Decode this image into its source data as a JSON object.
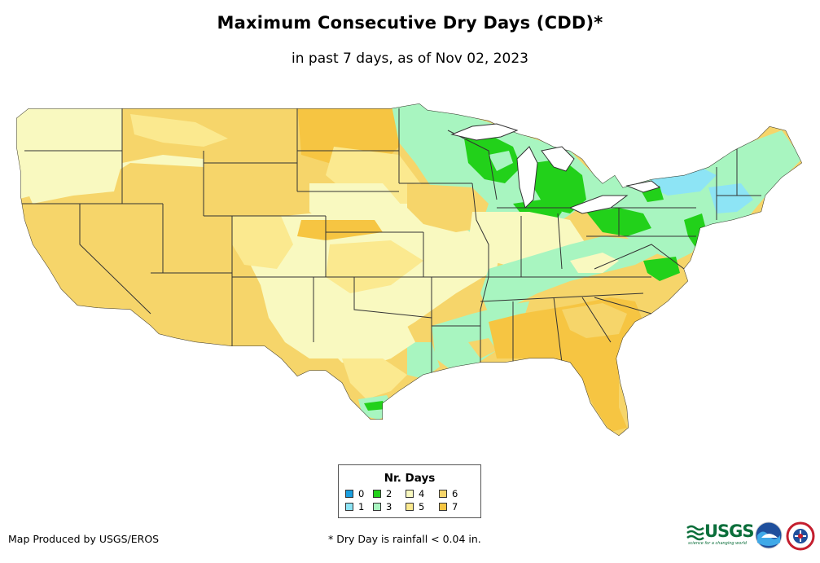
{
  "header": {
    "title": "Maximum Consecutive Dry Days (CDD)*",
    "subtitle": "in past 7 days, as of Nov 02, 2023"
  },
  "legend": {
    "title": "Nr. Days",
    "items": [
      {
        "label": "0",
        "color": "#1a9fe0"
      },
      {
        "label": "1",
        "color": "#8de4f5"
      },
      {
        "label": "2",
        "color": "#22d11a"
      },
      {
        "label": "3",
        "color": "#a8f5c0"
      },
      {
        "label": "4",
        "color": "#f9f9c0"
      },
      {
        "label": "5",
        "color": "#fbe98f"
      },
      {
        "label": "6",
        "color": "#f6d56a"
      },
      {
        "label": "7",
        "color": "#f6c542"
      }
    ]
  },
  "footer": {
    "credit": "Map Produced by USGS/EROS",
    "note": "* Dry Day is rainfall < 0.04 in."
  },
  "logos": {
    "usgs_label": "USGS",
    "usgs_tagline": "science for a changing world",
    "items": [
      "usgs-logo",
      "noaa-logo",
      "nws-logo"
    ]
  },
  "map": {
    "region": "contiguous United States",
    "background_color": "#f6d56a",
    "border_color": "#333333"
  }
}
